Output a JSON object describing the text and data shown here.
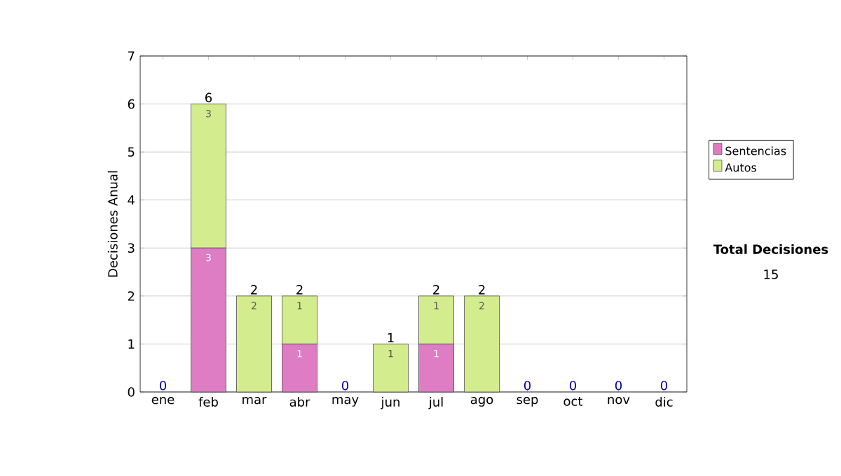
{
  "chart_data": {
    "type": "bar",
    "stacked": true,
    "ylabel": "Decisiones Anual",
    "categories": [
      "ene",
      "feb",
      "mar",
      "abr",
      "may",
      "jun",
      "jul",
      "ago",
      "sep",
      "oct",
      "nov",
      "dic"
    ],
    "series": [
      {
        "name": "Sentencias",
        "color": "#de7cc4",
        "values": [
          0,
          3,
          0,
          1,
          0,
          0,
          1,
          0,
          0,
          0,
          0,
          0
        ],
        "value_labels": [
          null,
          "3",
          null,
          "1",
          null,
          null,
          "1",
          null,
          null,
          null,
          null,
          null
        ]
      },
      {
        "name": "Autos",
        "color": "#d3ec8e",
        "values": [
          0,
          3,
          2,
          1,
          0,
          1,
          1,
          2,
          0,
          0,
          0,
          0
        ],
        "value_labels": [
          null,
          "3",
          "2",
          "1",
          null,
          "1",
          "1",
          "2",
          null,
          null,
          null,
          null
        ]
      }
    ],
    "totals": [
      "0",
      "6",
      "2",
      "2",
      "0",
      "1",
      "2",
      "2",
      "0",
      "0",
      "0",
      "0"
    ],
    "ylim": [
      0,
      7
    ],
    "yticks": [
      0,
      1,
      2,
      3,
      4,
      5,
      6,
      7
    ],
    "grid": "y",
    "legend": "right",
    "annotations": [
      "Total Decisiones",
      "15"
    ]
  }
}
